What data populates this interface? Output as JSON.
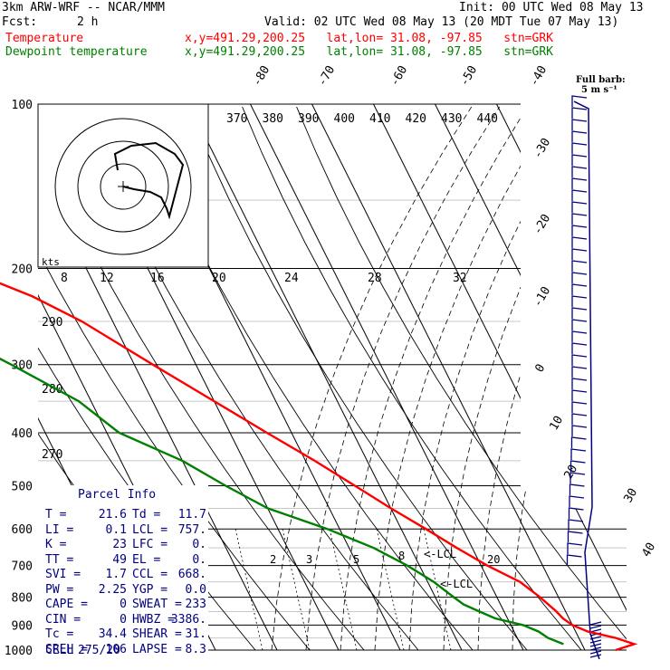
{
  "header": {
    "model": "3km ARW-WRF -- NCAR/MMM",
    "init": "Init: 00 UTC Wed 08 May 13",
    "fcst_label": "Fcst:",
    "fcst_value": "2 h",
    "valid": "Valid: 02 UTC Wed 08 May 13 (20 MDT Tue 07 May 13)",
    "temperature_label": "Temperature",
    "dewpoint_label": "Dewpoint temperature",
    "temp_location": "x,y=491.29,200.25   lat,lon= 31.08, -97.85   stn=GRK",
    "dew_location": "x,y=491.29,200.25   lat,lon= 31.08, -97.85   stn=GRK"
  },
  "barb_legend": {
    "title": "Full barb:",
    "value": "5 m s⁻¹"
  },
  "hodograph": {
    "units": "kts",
    "rings": [
      "25",
      "50"
    ]
  },
  "parcel_info": {
    "title": "Parcel Info",
    "rows": [
      {
        "k1": "T",
        "v1": "21.6",
        "k2": "Td",
        "v2": "11.7"
      },
      {
        "k1": "LI",
        "v1": "0.1",
        "k2": "LCL",
        "v2": "757."
      },
      {
        "k1": "K",
        "v1": "23",
        "k2": "LFC",
        "v2": "0."
      },
      {
        "k1": "TT",
        "v1": "49",
        "k2": "EL",
        "v2": "0."
      },
      {
        "k1": "SVI",
        "v1": "1.7",
        "k2": "CCL",
        "v2": "668."
      },
      {
        "k1": "PW",
        "v1": "2.25",
        "k2": "YGP",
        "v2": "0.0"
      },
      {
        "k1": "CAPE",
        "v1": "0",
        "k2": "SWEAT",
        "v2": "233"
      },
      {
        "k1": "CIN",
        "v1": "0",
        "k2": "HWBZ",
        "v2": "3386."
      },
      {
        "k1": "Tc",
        "v1": "34.4",
        "k2": "SHEAR",
        "v2": "31."
      },
      {
        "k1": "SREH",
        "v1": "106",
        "k2": "LAPSE",
        "v2": "8.3"
      }
    ],
    "cell_label": "CELL",
    "cell_value": "275/20"
  },
  "chart_data": {
    "type": "line",
    "subtype": "skew-T log-p sounding",
    "y_axis": {
      "label": "",
      "scale": "log",
      "ylim": [
        1000,
        100
      ],
      "tick_labels": [
        "100",
        "200",
        "300",
        "400",
        "500",
        "600",
        "700",
        "800",
        "900",
        "1000"
      ]
    },
    "isotherm_labels": [
      "-80",
      "-70",
      "-60",
      "-50",
      "-40",
      "-30",
      "-20",
      "-10",
      "0",
      "10",
      "20",
      "30",
      "40"
    ],
    "theta_labels": [
      "370",
      "380",
      "390",
      "400",
      "410",
      "420",
      "430",
      "440"
    ],
    "theta_left_labels": [
      "290",
      "280",
      "270"
    ],
    "mixing_ratio_labels": [
      "8",
      "12",
      "16",
      "20",
      "24",
      "28",
      "32"
    ],
    "lower_mixing_labels": [
      "2",
      "3",
      "5",
      "8",
      "20"
    ],
    "lcl_labels": [
      "<-LCL",
      "<-LCL"
    ],
    "series": [
      {
        "name": "Temperature",
        "color": "#ff0000",
        "points": [
          [
            1000,
            25
          ],
          [
            975,
            28.5
          ],
          [
            950,
            26
          ],
          [
            925,
            22
          ],
          [
            900,
            20
          ],
          [
            875,
            19
          ],
          [
            850,
            18.5
          ],
          [
            800,
            17
          ],
          [
            750,
            15
          ],
          [
            700,
            11
          ],
          [
            650,
            7.5
          ],
          [
            600,
            4
          ],
          [
            550,
            0
          ],
          [
            500,
            -4
          ],
          [
            450,
            -8.5
          ],
          [
            400,
            -14
          ],
          [
            350,
            -20
          ],
          [
            300,
            -27
          ],
          [
            250,
            -35
          ],
          [
            225,
            -41
          ],
          [
            200,
            -50
          ],
          [
            175,
            -55
          ],
          [
            150,
            -58
          ],
          [
            125,
            -62
          ],
          [
            100,
            -71
          ]
        ]
      },
      {
        "name": "Dewpoint temperature",
        "color": "#008000",
        "points": [
          [
            975,
            17
          ],
          [
            950,
            15
          ],
          [
            925,
            14
          ],
          [
            900,
            12
          ],
          [
            875,
            8
          ],
          [
            850,
            6
          ],
          [
            825,
            4
          ],
          [
            800,
            3
          ],
          [
            750,
            1
          ],
          [
            700,
            -2
          ],
          [
            650,
            -6
          ],
          [
            600,
            -12
          ],
          [
            550,
            -20
          ],
          [
            500,
            -25
          ],
          [
            450,
            -30
          ],
          [
            400,
            -38
          ],
          [
            350,
            -42
          ],
          [
            300,
            -50
          ],
          [
            250,
            -60
          ],
          [
            200,
            -72
          ],
          [
            175,
            -78
          ],
          [
            150,
            -85
          ],
          [
            125,
            -95
          ],
          [
            100,
            -100
          ]
        ]
      }
    ],
    "hodograph_trace": [
      [
        0,
        0
      ],
      [
        4,
        -1
      ],
      [
        10,
        -2
      ],
      [
        14,
        -4
      ],
      [
        16,
        -8
      ],
      [
        17,
        -11
      ],
      [
        16,
        8
      ],
      [
        13,
        12
      ],
      [
        6,
        16
      ],
      [
        -3,
        15
      ],
      [
        -9,
        12
      ],
      [
        -8,
        6
      ]
    ],
    "grid": true
  },
  "colors": {
    "temperature": "#ff0000",
    "dewpoint": "#008000",
    "barbs": "#000080",
    "grid": "#000000"
  }
}
